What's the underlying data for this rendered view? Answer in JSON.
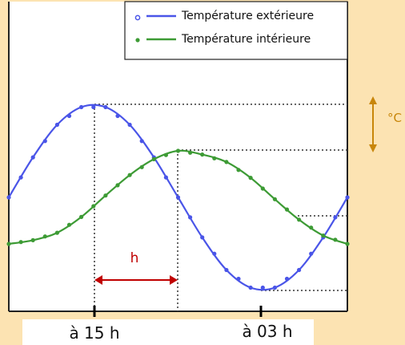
{
  "chart_data": {
    "type": "line",
    "title": "",
    "xlabel": "",
    "ylabel": "",
    "legend_placement": "top-right",
    "x_tick_labels": [
      "à 15 h",
      "à 03 h"
    ],
    "unit_label": "°C",
    "phase_shift_label": "h",
    "grid": false,
    "series": [
      {
        "name": "Température extérieure",
        "color": "#4a55e8",
        "description_marker": "circle",
        "values": [
          0.0,
          0.43,
          0.78,
          0.97,
          0.97,
          0.78,
          0.43,
          0.0,
          -0.43,
          -0.78,
          -0.97,
          -0.97,
          -0.78,
          -0.43,
          0.0
        ]
      },
      {
        "name": "Température intérieure",
        "color": "#3d9b35",
        "description_marker": "circle",
        "values": [
          -0.5,
          -0.46,
          -0.38,
          -0.21,
          0.02,
          0.24,
          0.41,
          0.5,
          0.46,
          0.38,
          0.21,
          -0.02,
          -0.24,
          -0.41,
          -0.5
        ]
      }
    ]
  }
}
